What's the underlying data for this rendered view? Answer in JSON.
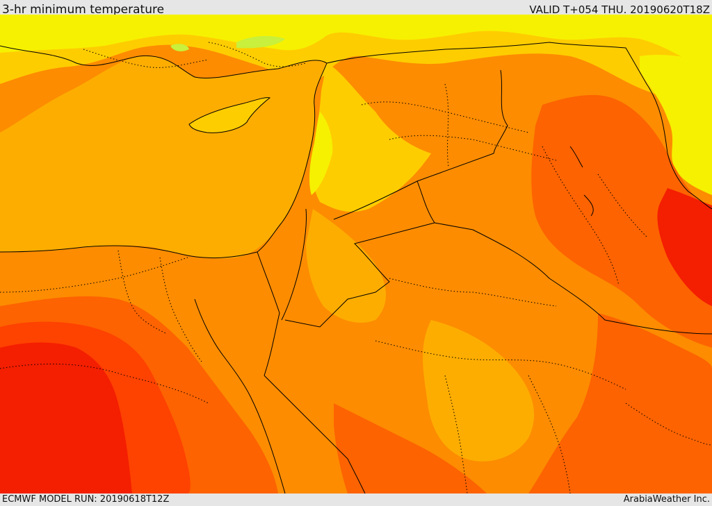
{
  "header": {
    "title": "3-hr minimum temperature",
    "valid": "VALID T+054 THU. 20190620T18Z"
  },
  "footer": {
    "model_run": "ECMWF MODEL RUN: 20190618T12Z",
    "credit": "ArabiaWeather Inc."
  },
  "map": {
    "palette": {
      "sea_orange": "#fdad00",
      "light_yellow": "#f6f100",
      "yellow": "#fecd00",
      "green": "#c8f03c",
      "orange": "#fd8c00",
      "dark_orange": "#fd6300",
      "red_orange": "#fe4200",
      "red": "#f41e00",
      "border": "#000000"
    }
  }
}
